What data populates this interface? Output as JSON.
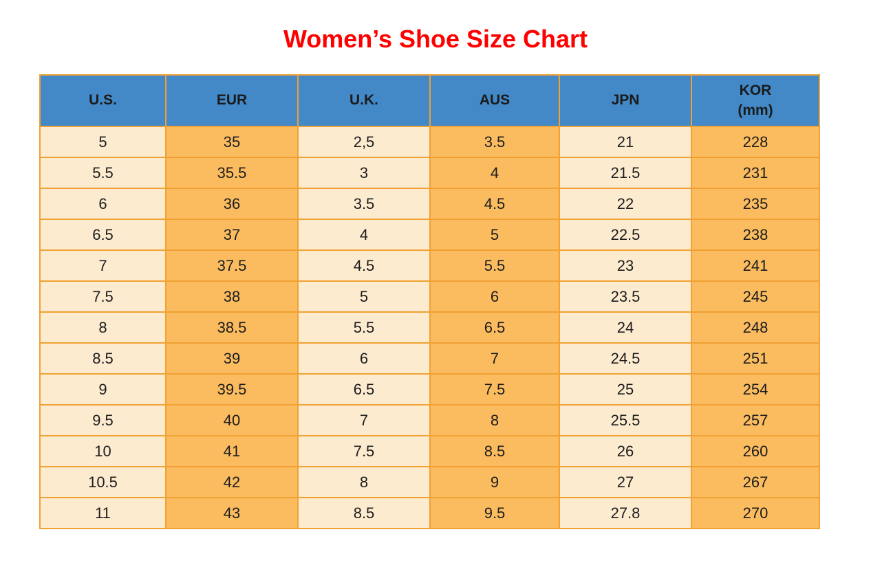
{
  "title": {
    "text": "Women’s Shoe Size Chart",
    "color": "#ff0000"
  },
  "table": {
    "headers": [
      "U.S.",
      "EUR",
      "U.K.",
      "AUS",
      "JPN",
      "KOR\n(mm)"
    ],
    "rows": [
      [
        "5",
        "35",
        "2,5",
        "3.5",
        "21",
        "228"
      ],
      [
        "5.5",
        "35.5",
        "3",
        "4",
        "21.5",
        "231"
      ],
      [
        "6",
        "36",
        "3.5",
        "4.5",
        "22",
        "235"
      ],
      [
        "6.5",
        "37",
        "4",
        "5",
        "22.5",
        "238"
      ],
      [
        "7",
        "37.5",
        "4.5",
        "5.5",
        "23",
        "241"
      ],
      [
        "7.5",
        "38",
        "5",
        "6",
        "23.5",
        "245"
      ],
      [
        "8",
        "38.5",
        "5.5",
        "6.5",
        "24",
        "248"
      ],
      [
        "8.5",
        "39",
        "6",
        "7",
        "24.5",
        "251"
      ],
      [
        "9",
        "39.5",
        "6.5",
        "7.5",
        "25",
        "254"
      ],
      [
        "9.5",
        "40",
        "7",
        "8",
        "25.5",
        "257"
      ],
      [
        "10",
        "41",
        "7.5",
        "8.5",
        "26",
        "260"
      ],
      [
        "10.5",
        "42",
        "8",
        "9",
        "27",
        "267"
      ],
      [
        "11",
        "43",
        "8.5",
        "9.5",
        "27.8",
        "270"
      ]
    ],
    "colors": {
      "header_bg": "#4389c8",
      "cream_cell": "#fdebd0",
      "orange_cell": "#fbbc60",
      "border": "#f0a132",
      "text": "#1c1c1c"
    }
  },
  "chart_data": {
    "type": "table",
    "title": "Women’s Shoe Size Chart",
    "columns": [
      "U.S.",
      "EUR",
      "U.K.",
      "AUS",
      "JPN",
      "KOR (mm)"
    ],
    "rows": [
      [
        "5",
        "35",
        "2,5",
        "3.5",
        "21",
        "228"
      ],
      [
        "5.5",
        "35.5",
        "3",
        "4",
        "21.5",
        "231"
      ],
      [
        "6",
        "36",
        "3.5",
        "4.5",
        "22",
        "235"
      ],
      [
        "6.5",
        "37",
        "4",
        "5",
        "22.5",
        "238"
      ],
      [
        "7",
        "37.5",
        "4.5",
        "5.5",
        "23",
        "241"
      ],
      [
        "7.5",
        "38",
        "5",
        "6",
        "23.5",
        "245"
      ],
      [
        "8",
        "38.5",
        "5.5",
        "6.5",
        "24",
        "248"
      ],
      [
        "8.5",
        "39",
        "6",
        "7",
        "24.5",
        "251"
      ],
      [
        "9",
        "39.5",
        "6.5",
        "7.5",
        "25",
        "254"
      ],
      [
        "9.5",
        "40",
        "7",
        "8",
        "25.5",
        "257"
      ],
      [
        "10",
        "41",
        "7.5",
        "8.5",
        "26",
        "260"
      ],
      [
        "10.5",
        "42",
        "8",
        "9",
        "27",
        "267"
      ],
      [
        "11",
        "43",
        "8.5",
        "9.5",
        "27.8",
        "270"
      ]
    ]
  }
}
